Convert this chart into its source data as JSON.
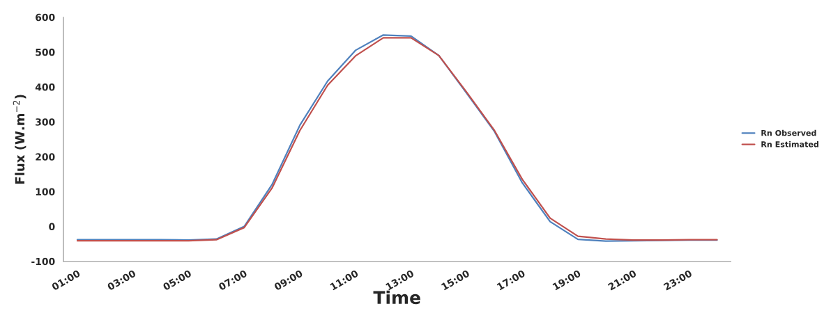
{
  "chart_data": {
    "type": "line",
    "xlabel": "Time",
    "ylabel": "Flux (W.m$^{−2}$)",
    "categories": [
      "01:00",
      null,
      "03:00",
      null,
      "05:00",
      null,
      "07:00",
      null,
      "09:00",
      null,
      "11:00",
      null,
      "13:00",
      null,
      "15:00",
      null,
      "17:00",
      null,
      "19:00",
      null,
      "21:00",
      null,
      "23:00",
      null
    ],
    "series": [
      {
        "name": "Rn Observed",
        "color": "#4f81bd",
        "values": [
          -38,
          -38,
          -38,
          -38,
          -39,
          -36,
          0,
          120,
          290,
          417,
          505,
          549,
          546,
          490,
          382,
          272,
          125,
          14,
          -37,
          -42,
          -41,
          -40,
          -39,
          -39
        ]
      },
      {
        "name": "Rn Estimated",
        "color": "#c0504d",
        "values": [
          -41,
          -41,
          -41,
          -41,
          -41,
          -38,
          -3,
          110,
          275,
          405,
          489,
          541,
          541,
          490,
          385,
          275,
          135,
          24,
          -28,
          -36,
          -39,
          -39,
          -38,
          -38
        ]
      }
    ],
    "ylim": [
      -100,
      600
    ],
    "yticks": [
      -100,
      0,
      100,
      200,
      300,
      400,
      500,
      600
    ],
    "grid": false,
    "legend": "right",
    "marker": "none",
    "line_style": "solid"
  }
}
